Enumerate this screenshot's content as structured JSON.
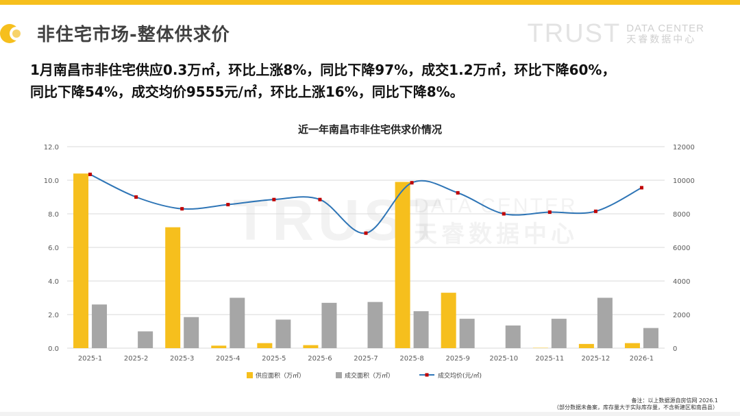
{
  "header": {
    "title": "非住宅市场-整体供求价",
    "brand_word": "TRUST",
    "brand_en": "DATA CENTER",
    "brand_cn": "天睿数据中心"
  },
  "summary": {
    "line1": "1月南昌市非住宅供应0.3万㎡，环比上涨8%，同比下降97%，成交1.2万㎡，环比下降60%，",
    "line2": "同比下降54%，成交均价9555元/㎡，环比上涨16%，同比下降8%。"
  },
  "watermark": {
    "word": "TRUST",
    "en": "DATA CENTER",
    "cn": "天睿数据中心"
  },
  "chart_data": {
    "type": "bar",
    "title": "近一年南昌市非住宅供求价情况",
    "categories": [
      "2025-1",
      "2025-2",
      "2025-3",
      "2025-4",
      "2025-5",
      "2025-6",
      "2025-7",
      "2025-8",
      "2025-9",
      "2025-10",
      "2025-11",
      "2025-12",
      "2026-1"
    ],
    "y_left": {
      "ticks": [
        "0.0",
        "2.0",
        "4.0",
        "6.0",
        "8.0",
        "10.0",
        "12.0"
      ],
      "range": [
        0,
        12
      ]
    },
    "y_right": {
      "ticks": [
        "0",
        "2000",
        "4000",
        "6000",
        "8000",
        "10000",
        "12000"
      ],
      "range": [
        0,
        12000
      ]
    },
    "grid": true,
    "legend_position": "bottom",
    "series": [
      {
        "name": "供应面积（万㎡）",
        "kind": "bar",
        "axis": "left",
        "color": "#f6bf1d",
        "values": [
          10.4,
          0,
          7.2,
          0.15,
          0.3,
          0.18,
          0,
          9.9,
          3.3,
          0,
          0.02,
          0.25,
          0.3
        ]
      },
      {
        "name": "成交面积（万㎡）",
        "kind": "bar",
        "axis": "left",
        "color": "#a6a6a6",
        "values": [
          2.6,
          1.0,
          1.85,
          3.0,
          1.7,
          2.7,
          2.75,
          2.2,
          1.75,
          1.35,
          1.75,
          3.0,
          1.2
        ]
      },
      {
        "name": "成交均价(元/㎡)",
        "kind": "line",
        "axis": "right",
        "color": "#2e75b6",
        "marker_color": "#c00000",
        "values": [
          10350,
          9000,
          8300,
          8550,
          8850,
          8850,
          6850,
          9850,
          9250,
          8000,
          8100,
          8150,
          9555
        ]
      }
    ]
  },
  "footnote": {
    "line1": "备注：以上数据源自房信网   2026.1",
    "line2": "（部分数据未备案，库存量大于实际库存量，不含新建区和南昌县）"
  }
}
